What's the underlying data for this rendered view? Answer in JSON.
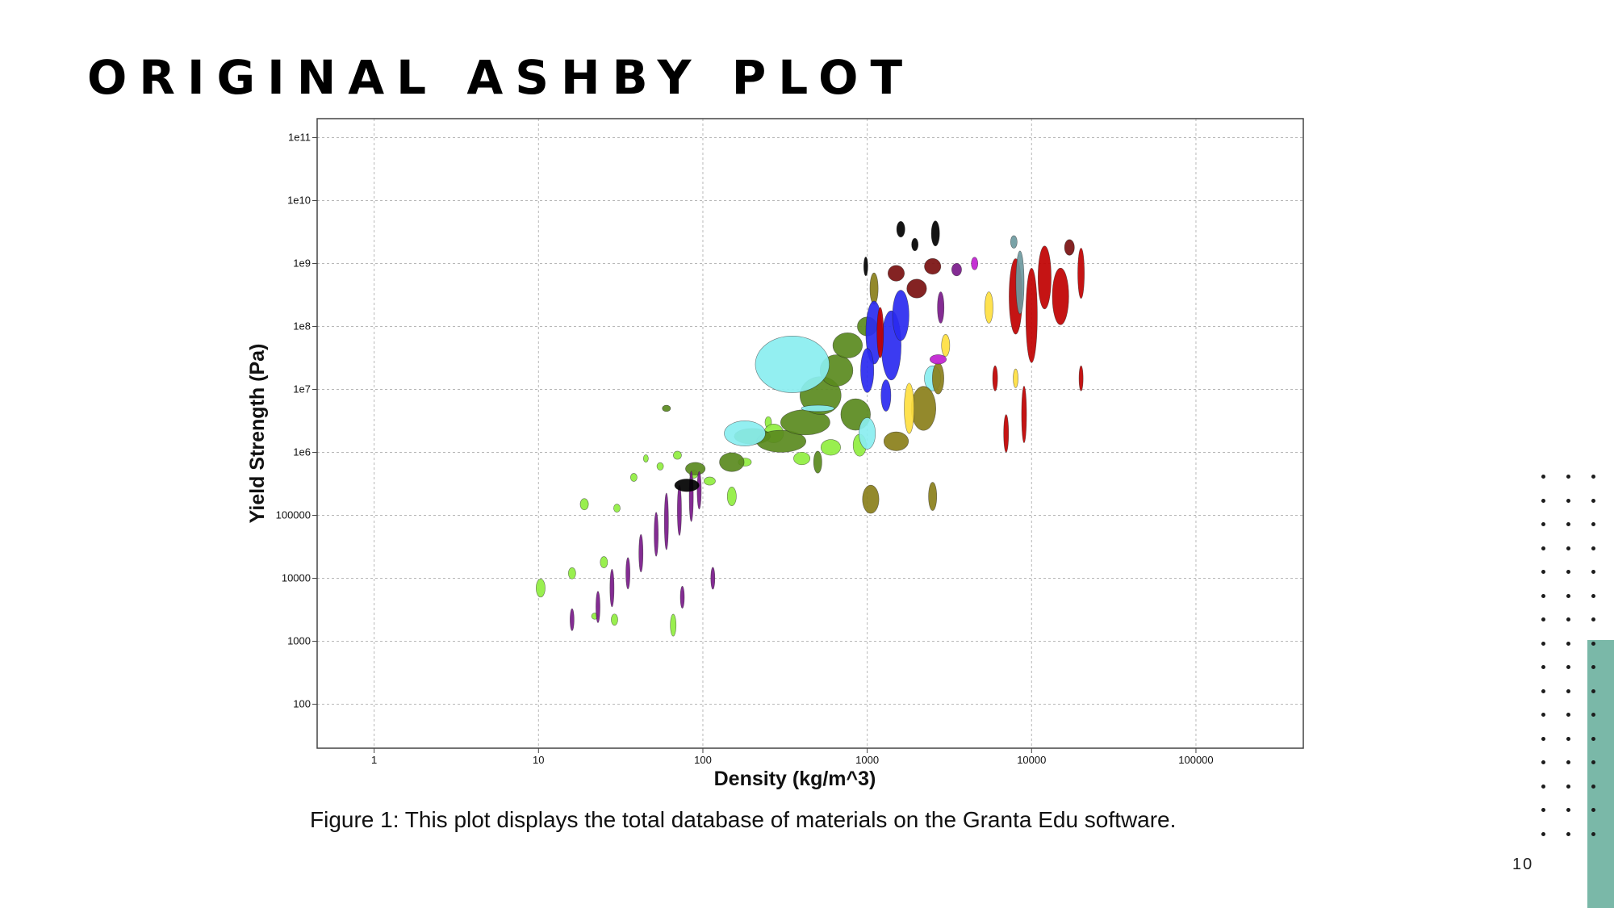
{
  "slide": {
    "title": "ORIGINAL ASHBY PLOT",
    "caption": "Figure 1: This plot displays the total database of materials on the Granta Edu software.",
    "page_number": "10",
    "accent_color": "#7ab8a8"
  },
  "chart_data": {
    "type": "scatter",
    "title": "",
    "xlabel": "Density (kg/m^3)",
    "ylabel": "Yield Strength (Pa)",
    "xscale": "log",
    "yscale": "log",
    "xlim": [
      0.45,
      450000
    ],
    "ylim": [
      20,
      200000000000
    ],
    "x_ticks": [
      1,
      10,
      100,
      1000,
      10000,
      100000
    ],
    "x_tick_labels": [
      "1",
      "10",
      "100",
      "1000",
      "10000",
      "100000"
    ],
    "y_ticks": [
      100,
      1000,
      10000,
      100000,
      1000000,
      10000000,
      100000000,
      1000000000,
      10000000000,
      100000000000
    ],
    "y_tick_labels": [
      "100",
      "1000",
      "10000",
      "100000",
      "1e6",
      "1e7",
      "1e8",
      "1e9",
      "1e10",
      "1e11"
    ],
    "grid": true,
    "legend": "none",
    "series": [
      {
        "color": "#90ee40",
        "points": [
          {
            "x": 10.3,
            "y": 7000,
            "w": 0.055,
            "h": 0.29
          },
          {
            "x": 16,
            "y": 12000,
            "w": 0.045,
            "h": 0.18
          },
          {
            "x": 19,
            "y": 150000,
            "w": 0.05,
            "h": 0.18
          },
          {
            "x": 22,
            "y": 2500,
            "w": 0.04,
            "h": 0.1
          },
          {
            "x": 25,
            "y": 18000,
            "w": 0.045,
            "h": 0.18
          },
          {
            "x": 29,
            "y": 2200,
            "w": 0.04,
            "h": 0.18
          },
          {
            "x": 30,
            "y": 130000,
            "w": 0.04,
            "h": 0.13
          },
          {
            "x": 38,
            "y": 400000,
            "w": 0.04,
            "h": 0.13
          },
          {
            "x": 45,
            "y": 800000,
            "w": 0.03,
            "h": 0.12
          },
          {
            "x": 55,
            "y": 600000,
            "w": 0.04,
            "h": 0.12
          },
          {
            "x": 66,
            "y": 1800,
            "w": 0.035,
            "h": 0.35
          },
          {
            "x": 70,
            "y": 900000,
            "w": 0.05,
            "h": 0.13
          },
          {
            "x": 88,
            "y": 450000,
            "w": 0.05,
            "h": 0.13
          },
          {
            "x": 110,
            "y": 350000,
            "w": 0.07,
            "h": 0.13
          },
          {
            "x": 150,
            "y": 200000,
            "w": 0.055,
            "h": 0.3
          },
          {
            "x": 180,
            "y": 700000,
            "w": 0.08,
            "h": 0.13
          },
          {
            "x": 250,
            "y": 3000000,
            "w": 0.04,
            "h": 0.18
          },
          {
            "x": 270,
            "y": 2000000,
            "w": 0.12,
            "h": 0.3
          },
          {
            "x": 400,
            "y": 800000,
            "w": 0.1,
            "h": 0.2
          },
          {
            "x": 600,
            "y": 1200000,
            "w": 0.12,
            "h": 0.25
          },
          {
            "x": 900,
            "y": 1300000,
            "w": 0.08,
            "h": 0.35
          }
        ]
      },
      {
        "color": "#5a8a1e",
        "points": [
          {
            "x": 90,
            "y": 550000,
            "w": 0.12,
            "h": 0.2
          },
          {
            "x": 150,
            "y": 700000,
            "w": 0.15,
            "h": 0.3
          },
          {
            "x": 200,
            "y": 1800000,
            "w": 0.22,
            "h": 0.25
          },
          {
            "x": 300,
            "y": 1500000,
            "w": 0.3,
            "h": 0.35
          },
          {
            "x": 420,
            "y": 3000000,
            "w": 0.3,
            "h": 0.4
          },
          {
            "x": 520,
            "y": 8000000,
            "w": 0.25,
            "h": 0.6
          },
          {
            "x": 650,
            "y": 20000000,
            "w": 0.2,
            "h": 0.5
          },
          {
            "x": 760,
            "y": 50000000,
            "w": 0.18,
            "h": 0.4
          },
          {
            "x": 850,
            "y": 4000000,
            "w": 0.18,
            "h": 0.5
          },
          {
            "x": 1000,
            "y": 100000000,
            "w": 0.12,
            "h": 0.3
          },
          {
            "x": 500,
            "y": 700000,
            "w": 0.05,
            "h": 0.35
          },
          {
            "x": 60,
            "y": 5000000,
            "w": 0.05,
            "h": 0.1
          }
        ]
      },
      {
        "color": "#8aeef0",
        "points": [
          {
            "x": 350,
            "y": 25000000,
            "w": 0.45,
            "h": 0.9
          },
          {
            "x": 180,
            "y": 2000000,
            "w": 0.25,
            "h": 0.4
          },
          {
            "x": 1000,
            "y": 2000000,
            "w": 0.1,
            "h": 0.5
          },
          {
            "x": 2500,
            "y": 15000000,
            "w": 0.1,
            "h": 0.4
          },
          {
            "x": 500,
            "y": 5000000,
            "w": 0.2,
            "h": 0.1
          }
        ]
      },
      {
        "color": "#7a1a8a",
        "points": [
          {
            "x": 16,
            "y": 2200,
            "w": 0.02,
            "h": 0.35
          },
          {
            "x": 23,
            "y": 3500,
            "w": 0.025,
            "h": 0.5
          },
          {
            "x": 28,
            "y": 7000,
            "w": 0.025,
            "h": 0.6
          },
          {
            "x": 35,
            "y": 12000,
            "w": 0.025,
            "h": 0.5
          },
          {
            "x": 42,
            "y": 25000,
            "w": 0.025,
            "h": 0.6
          },
          {
            "x": 52,
            "y": 50000,
            "w": 0.025,
            "h": 0.7
          },
          {
            "x": 60,
            "y": 80000,
            "w": 0.025,
            "h": 0.9
          },
          {
            "x": 72,
            "y": 120000,
            "w": 0.025,
            "h": 0.8
          },
          {
            "x": 85,
            "y": 200000,
            "w": 0.025,
            "h": 0.8
          },
          {
            "x": 95,
            "y": 250000,
            "w": 0.025,
            "h": 0.6
          },
          {
            "x": 75,
            "y": 5000,
            "w": 0.02,
            "h": 0.35
          },
          {
            "x": 115,
            "y": 10000,
            "w": 0.02,
            "h": 0.35
          },
          {
            "x": 3500,
            "y": 800000000,
            "w": 0.06,
            "h": 0.2
          },
          {
            "x": 2800,
            "y": 200000000,
            "w": 0.04,
            "h": 0.5
          }
        ]
      },
      {
        "color": "#000000",
        "points": [
          {
            "x": 80,
            "y": 300000,
            "w": 0.15,
            "h": 0.2
          },
          {
            "x": 1600,
            "y": 3500000000,
            "w": 0.05,
            "h": 0.25
          },
          {
            "x": 2600,
            "y": 3000000000,
            "w": 0.05,
            "h": 0.4
          },
          {
            "x": 1950,
            "y": 2000000000,
            "w": 0.04,
            "h": 0.2
          },
          {
            "x": 980,
            "y": 900000000,
            "w": 0.025,
            "h": 0.3
          }
        ]
      },
      {
        "color": "#8a7f1a",
        "points": [
          {
            "x": 1050,
            "y": 180000,
            "w": 0.1,
            "h": 0.45
          },
          {
            "x": 2500,
            "y": 200000,
            "w": 0.05,
            "h": 0.45
          },
          {
            "x": 1500,
            "y": 1500000,
            "w": 0.15,
            "h": 0.3
          },
          {
            "x": 2200,
            "y": 5000000,
            "w": 0.15,
            "h": 0.7
          },
          {
            "x": 2700,
            "y": 15000000,
            "w": 0.07,
            "h": 0.5
          },
          {
            "x": 1100,
            "y": 400000000,
            "w": 0.05,
            "h": 0.5
          }
        ]
      },
      {
        "color": "#ffe040",
        "points": [
          {
            "x": 1800,
            "y": 5000000,
            "w": 0.06,
            "h": 0.8
          },
          {
            "x": 3000,
            "y": 50000000,
            "w": 0.05,
            "h": 0.35
          },
          {
            "x": 5500,
            "y": 200000000,
            "w": 0.05,
            "h": 0.5
          },
          {
            "x": 8000,
            "y": 15000000,
            "w": 0.03,
            "h": 0.3
          }
        ]
      },
      {
        "color": "#2a2af0",
        "points": [
          {
            "x": 1100,
            "y": 80000000,
            "w": 0.1,
            "h": 1.0
          },
          {
            "x": 1400,
            "y": 50000000,
            "w": 0.12,
            "h": 1.1
          },
          {
            "x": 1000,
            "y": 20000000,
            "w": 0.08,
            "h": 0.7
          },
          {
            "x": 1600,
            "y": 150000000,
            "w": 0.1,
            "h": 0.8
          },
          {
            "x": 1300,
            "y": 8000000,
            "w": 0.06,
            "h": 0.5
          }
        ]
      },
      {
        "color": "#c00000",
        "points": [
          {
            "x": 8000,
            "y": 300000000,
            "w": 0.08,
            "h": 1.2
          },
          {
            "x": 10000,
            "y": 150000000,
            "w": 0.07,
            "h": 1.5
          },
          {
            "x": 12000,
            "y": 600000000,
            "w": 0.08,
            "h": 1.0
          },
          {
            "x": 15000,
            "y": 300000000,
            "w": 0.1,
            "h": 0.9
          },
          {
            "x": 20000,
            "y": 700000000,
            "w": 0.04,
            "h": 0.8
          },
          {
            "x": 7000,
            "y": 2000000,
            "w": 0.03,
            "h": 0.6
          },
          {
            "x": 9000,
            "y": 4000000,
            "w": 0.03,
            "h": 0.9
          },
          {
            "x": 20000,
            "y": 15000000,
            "w": 0.025,
            "h": 0.4
          },
          {
            "x": 6000,
            "y": 15000000,
            "w": 0.03,
            "h": 0.4
          },
          {
            "x": 1200,
            "y": 80000000,
            "w": 0.04,
            "h": 0.8
          }
        ]
      },
      {
        "color": "#7a1010",
        "points": [
          {
            "x": 1500,
            "y": 700000000,
            "w": 0.1,
            "h": 0.25
          },
          {
            "x": 2000,
            "y": 400000000,
            "w": 0.12,
            "h": 0.3
          },
          {
            "x": 2500,
            "y": 900000000,
            "w": 0.1,
            "h": 0.25
          },
          {
            "x": 17000,
            "y": 1800000000,
            "w": 0.06,
            "h": 0.25
          }
        ]
      },
      {
        "color": "#6e9aa0",
        "points": [
          {
            "x": 8500,
            "y": 500000000,
            "w": 0.05,
            "h": 1.0
          },
          {
            "x": 7800,
            "y": 2200000000,
            "w": 0.04,
            "h": 0.2
          }
        ]
      },
      {
        "color": "#c020d0",
        "points": [
          {
            "x": 2700,
            "y": 30000000,
            "w": 0.1,
            "h": 0.15
          },
          {
            "x": 4500,
            "y": 1000000000,
            "w": 0.04,
            "h": 0.2
          }
        ]
      }
    ]
  }
}
